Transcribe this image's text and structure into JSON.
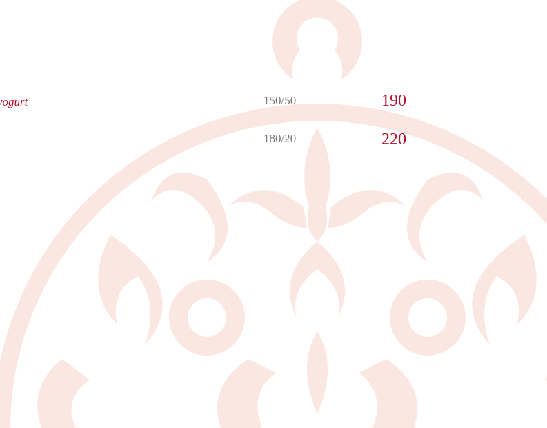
{
  "menu": {
    "item": "yogurt",
    "rows": [
      {
        "portion": "150/50",
        "price": 190
      },
      {
        "portion": "180/20",
        "price": 220
      }
    ]
  }
}
